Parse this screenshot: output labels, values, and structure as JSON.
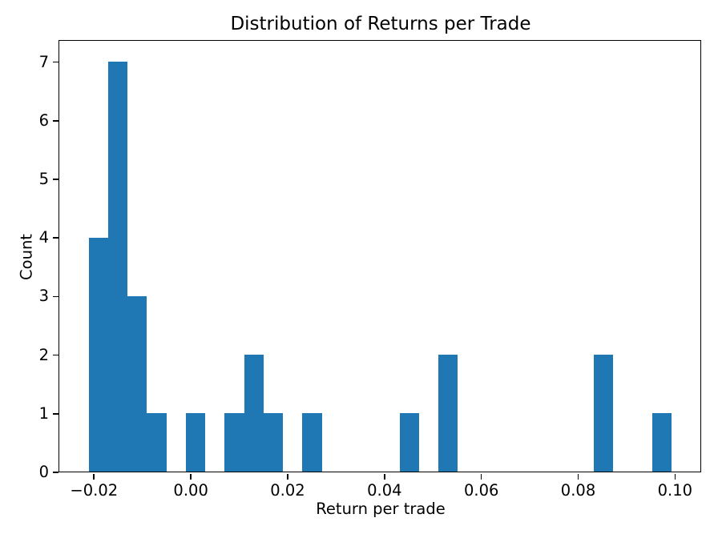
{
  "figure": {
    "background": "#ffffff",
    "title": "Distribution of Returns per Trade",
    "xlabel": "Return per trade",
    "ylabel": "Count"
  },
  "chart_data": {
    "type": "bar",
    "subtype": "histogram",
    "title": "Distribution of Returns per Trade",
    "xlabel": "Return per trade",
    "ylabel": "Count",
    "bar_color": "#1f77b4",
    "grid": false,
    "legend": null,
    "xlim": [
      -0.027,
      0.1054
    ],
    "ylim": [
      0,
      7.35
    ],
    "bins": {
      "start": -0.021,
      "width": 0.004013,
      "count": 30
    },
    "counts": [
      4,
      7,
      3,
      1,
      0,
      1,
      0,
      1,
      2,
      1,
      0,
      1,
      0,
      0,
      0,
      0,
      1,
      0,
      2,
      0,
      0,
      0,
      0,
      0,
      0,
      0,
      2,
      0,
      0,
      1
    ],
    "x_ticks": [
      {
        "value": -0.02,
        "label": "−0.02"
      },
      {
        "value": 0.0,
        "label": "0.00"
      },
      {
        "value": 0.02,
        "label": "0.02"
      },
      {
        "value": 0.04,
        "label": "0.04"
      },
      {
        "value": 0.06,
        "label": "0.06"
      },
      {
        "value": 0.08,
        "label": "0.08"
      },
      {
        "value": 0.1,
        "label": "0.10"
      }
    ],
    "y_ticks": [
      {
        "value": 0,
        "label": "0"
      },
      {
        "value": 1,
        "label": "1"
      },
      {
        "value": 2,
        "label": "2"
      },
      {
        "value": 3,
        "label": "3"
      },
      {
        "value": 4,
        "label": "4"
      },
      {
        "value": 5,
        "label": "5"
      },
      {
        "value": 6,
        "label": "6"
      },
      {
        "value": 7,
        "label": "7"
      }
    ]
  }
}
